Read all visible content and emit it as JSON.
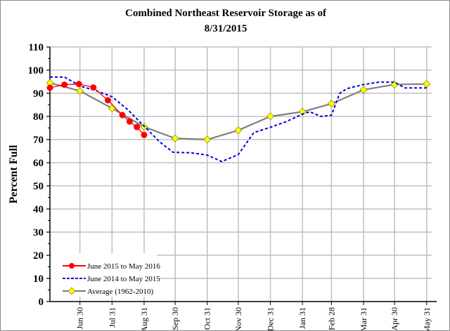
{
  "chart_data": {
    "type": "line",
    "title_lines": [
      "Combined Northeast Reservoir Storage as of",
      "8/31/2015"
    ],
    "xlabel": "",
    "ylabel": "Percent Full",
    "ylim": [
      0,
      110
    ],
    "yticks": [
      0,
      10,
      20,
      30,
      40,
      50,
      60,
      70,
      80,
      90,
      100,
      110
    ],
    "xlim": [
      "Jun 1",
      "May 31"
    ],
    "xticks": [
      "Jun 30",
      "Jul 31",
      "Aug 31",
      "Sep 30",
      "Oct 31",
      "Nov 30",
      "Dec 31",
      "Jan 31",
      "Feb 28",
      "Mar 31",
      "Apr 30",
      "May 31"
    ],
    "grid": true,
    "legend_position": "bottom-left",
    "series": [
      {
        "name": "June 2015 to May 2016",
        "color": "#ff0000",
        "style": "solid-circle-markers",
        "points": [
          [
            "Jun 1",
            92.4
          ],
          [
            "Jun 15",
            93.7
          ],
          [
            "Jun 29",
            94.0
          ],
          [
            "Jul 13",
            92.5
          ],
          [
            "Jul 27",
            87.0
          ],
          [
            "Aug 10",
            80.6
          ],
          [
            "Aug 17",
            77.8
          ],
          [
            "Aug 24",
            75.4
          ],
          [
            "Aug 31",
            72.0
          ]
        ]
      },
      {
        "name": "June 2014 to May 2015",
        "color": "#0000dd",
        "style": "dashed",
        "points": [
          [
            "Jun 1",
            97
          ],
          [
            "Jun 15",
            97
          ],
          [
            "Jul 1",
            93
          ],
          [
            "Jul 15",
            91.2
          ],
          [
            "Jul 31",
            88.5
          ],
          [
            "Aug 15",
            83
          ],
          [
            "Aug 31",
            75.8
          ],
          [
            "Sep 15",
            69
          ],
          [
            "Sep 28",
            64.5
          ],
          [
            "Oct 15",
            64.3
          ],
          [
            "Oct 31",
            63.3
          ],
          [
            "Nov 14",
            60.5
          ],
          [
            "Nov 30",
            63.5
          ],
          [
            "Dec 15",
            73
          ],
          [
            "Dec 31",
            75.3
          ],
          [
            "Jan 15",
            77.7
          ],
          [
            "Jan 31",
            81
          ],
          [
            "Feb 7",
            82
          ],
          [
            "Feb 18",
            80
          ],
          [
            "Feb 28",
            80.5
          ],
          [
            "Mar 8",
            90
          ],
          [
            "Mar 15",
            92
          ],
          [
            "Mar 31",
            93.8
          ],
          [
            "Apr 15",
            94.8
          ],
          [
            "Apr 30",
            94.8
          ],
          [
            "May 10",
            92.3
          ],
          [
            "May 31",
            92.3
          ]
        ]
      },
      {
        "name": "Average (1962-2010)",
        "color": "#808080",
        "marker_color": "#ffff00",
        "style": "solid-diamond-markers",
        "points": [
          [
            "Jun 1",
            94.5
          ],
          [
            "Jun 30",
            91
          ],
          [
            "Jul 31",
            83.5
          ],
          [
            "Aug 31",
            75.5
          ],
          [
            "Sep 30",
            70.5
          ],
          [
            "Oct 31",
            70
          ],
          [
            "Nov 30",
            74
          ],
          [
            "Dec 31",
            80
          ],
          [
            "Jan 31",
            82
          ],
          [
            "Feb 28",
            85.5
          ],
          [
            "Mar 31",
            91.5
          ],
          [
            "Apr 30",
            93.8
          ],
          [
            "May 31",
            94
          ]
        ]
      }
    ]
  }
}
